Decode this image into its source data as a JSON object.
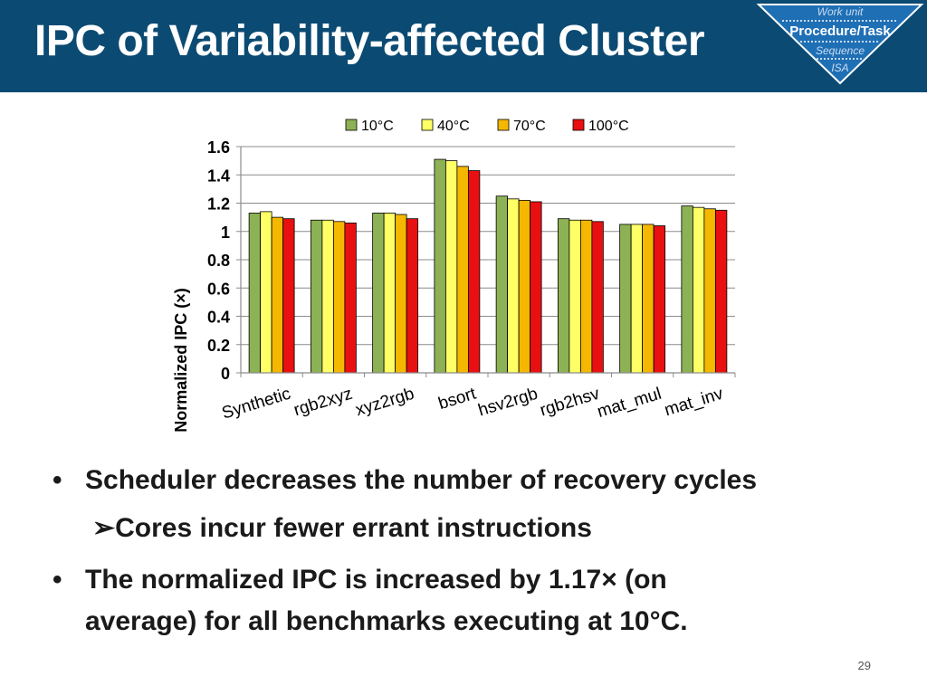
{
  "slide": {
    "title": "IPC of Variability-affected Cluster",
    "page_number": "29"
  },
  "badge": {
    "work_unit": "Work unit",
    "procedure_task": "Procedure/Task",
    "sequence": "Sequence",
    "isa": "ISA",
    "colors": {
      "fill": "#1f6fb5",
      "border": "#ffffff"
    }
  },
  "bullets": {
    "b1": "Scheduler decreases the number of recovery cycles",
    "b2": "Cores incur fewer errant instructions",
    "b3_line1": "The normalized IPC is increased by 1.17× (on",
    "b3_line2": "average) for all benchmarks executing at 10°C.",
    "bullet_glyph": "•",
    "sub_bullet_glyph": "➢"
  },
  "chart_data": {
    "type": "bar",
    "categories": [
      "Synthetic",
      "rgb2xyz",
      "xyz2rgb",
      "bsort",
      "hsv2rgb",
      "rgb2hsv",
      "mat_mul",
      "mat_inv"
    ],
    "series": [
      {
        "name": "10°C",
        "color": "#8db155",
        "values": [
          1.13,
          1.08,
          1.13,
          1.51,
          1.25,
          1.09,
          1.05,
          1.18
        ]
      },
      {
        "name": "40°C",
        "color": "#ffff66",
        "values": [
          1.14,
          1.08,
          1.13,
          1.5,
          1.23,
          1.08,
          1.05,
          1.17
        ]
      },
      {
        "name": "70°C",
        "color": "#f5b800",
        "values": [
          1.1,
          1.07,
          1.12,
          1.46,
          1.22,
          1.08,
          1.05,
          1.16
        ]
      },
      {
        "name": "100°C",
        "color": "#e81010",
        "values": [
          1.09,
          1.06,
          1.09,
          1.43,
          1.21,
          1.07,
          1.04,
          1.15
        ]
      }
    ],
    "ylabel": "Normalized IPC (×)",
    "ylim": [
      0,
      1.6
    ],
    "yticks": [
      "0",
      "0.2",
      "0.4",
      "0.6",
      "0.8",
      "1",
      "1.2",
      "1.4",
      "1.6"
    ],
    "grid": true,
    "legend": "top"
  }
}
